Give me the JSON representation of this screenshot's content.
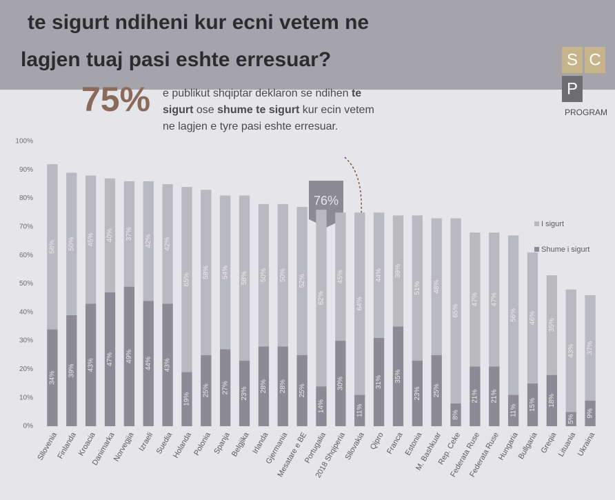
{
  "chart_data": {
    "type": "stacked_bar",
    "title_lines": [
      "te sigurt ndiheni kur ecni vetem ne",
      "lagjen tuaj pasi eshte erresuar?"
    ],
    "annotation_big": "75%",
    "annotation_parts": [
      "e publikut shqiptar deklaron se ndihen ",
      "te",
      " sigurt",
      " ose ",
      "shume te sigurt",
      " kur ecin vetem ne lagjen e tyre pasi eshte erresuar."
    ],
    "callout": "76%",
    "logo": [
      "S",
      "C",
      "P",
      "PROGRAM"
    ],
    "categories": [
      "Sllovenia",
      "Finlanda",
      "Kroacia",
      "Danimarka",
      "Norvegjia",
      "Izraeli",
      "Suedia",
      "Holanda",
      "Polonia",
      "Spanja",
      "Belgjika",
      "Irlanda",
      "Gjermania",
      "Mesatare e BE",
      "Portugalia",
      "2018 Shqiperia",
      "Sllovakia",
      "Qipro",
      "Franca",
      "Estonia",
      "M. Bashkuar",
      "Rep. Ceke",
      "Federata Ruse",
      "Federata Ruse",
      "Hungaria",
      "Bullgaria",
      "Greqia",
      "Lituania",
      "Ukraina"
    ],
    "series": [
      {
        "name": "I sigurt",
        "color": "#b9b9c0",
        "values": [
          58,
          50,
          45,
          40,
          37,
          42,
          42,
          65,
          58,
          54,
          58,
          50,
          50,
          52,
          62,
          45,
          64,
          44,
          39,
          51,
          48,
          65,
          47,
          47,
          56,
          46,
          35,
          43,
          37
        ],
        "value_labels": [
          "58%",
          "50%",
          "45%",
          "40%",
          "37%",
          "42%",
          "42%",
          "65%",
          "58%",
          "54%",
          "58%",
          "50%",
          "50%",
          "52%",
          "62%",
          "45%",
          "64%",
          "44%",
          "39%",
          "51%",
          "48%",
          "65%",
          "47%",
          "47%",
          "56%",
          "46%",
          "35%",
          "43%",
          "37%"
        ]
      },
      {
        "name": "Shume i sigurt",
        "color": "#8c8a92",
        "values": [
          34,
          39,
          43,
          47,
          49,
          44,
          43,
          19,
          25,
          27,
          23,
          28,
          28,
          25,
          14,
          30,
          11,
          31,
          35,
          23,
          25,
          8,
          21,
          21,
          11,
          15,
          18,
          5,
          9
        ],
        "value_labels": [
          "34%",
          "39%",
          "43%",
          "47%",
          "49%",
          "44%",
          "43%",
          "19%",
          "25%",
          "27%",
          "23%",
          "28%",
          "28%",
          "25%",
          "14%",
          "30%",
          "11%",
          "31%",
          "35%",
          "23%",
          "25%",
          "8%",
          "21%",
          "21%",
          "11%",
          "15%",
          "18%",
          "5%",
          "9%"
        ]
      }
    ],
    "ylim": [
      0,
      100
    ],
    "yticks": [
      {
        "value": 0,
        "label": "0%"
      },
      {
        "value": 10,
        "label": "10%"
      },
      {
        "value": 20,
        "label": "20%"
      },
      {
        "value": 30,
        "label": "30%"
      },
      {
        "value": 40,
        "label": "40%"
      },
      {
        "value": 50,
        "label": "50%"
      },
      {
        "value": 60,
        "label": "60%"
      },
      {
        "value": 70,
        "label": "70%"
      },
      {
        "value": 80,
        "label": "80%"
      },
      {
        "value": 90,
        "label": "90%"
      },
      {
        "value": 100,
        "label": "100%"
      }
    ],
    "grid": false,
    "legend": "right"
  }
}
